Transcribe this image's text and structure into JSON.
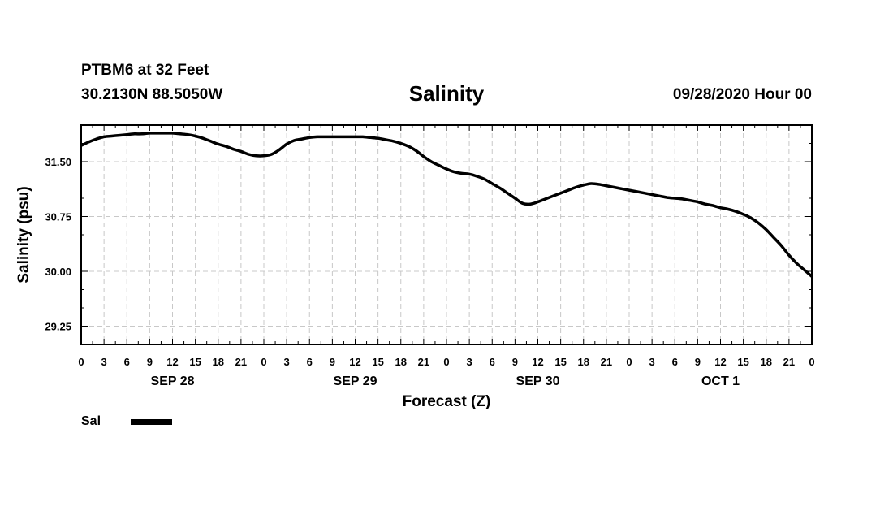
{
  "header": {
    "station": "PTBM6 at 32 Feet",
    "coords": "30.2130N 88.5050W",
    "title": "Salinity",
    "datetime": "09/28/2020 Hour 00"
  },
  "legend": {
    "label": "Sal",
    "color": "#000000"
  },
  "chart_data": {
    "type": "line",
    "title": "Salinity",
    "xlabel": "Forecast (Z)",
    "ylabel": "Salinity (psu)",
    "x_unit": "forecast hour from 09/28/2020 00Z",
    "xlim": [
      0,
      96
    ],
    "ylim": [
      29.0,
      32.0
    ],
    "yticks": [
      29.25,
      30.0,
      30.75,
      31.5
    ],
    "ytick_labels": [
      "29.25",
      "30.00",
      "30.75",
      "31.50"
    ],
    "xtick_labels": [
      "0",
      "3",
      "6",
      "9",
      "12",
      "15",
      "18",
      "21",
      "0",
      "3",
      "6",
      "9",
      "12",
      "15",
      "18",
      "21",
      "0",
      "3",
      "6",
      "9",
      "12",
      "15",
      "18",
      "21",
      "0",
      "3",
      "6",
      "9",
      "12",
      "15",
      "18",
      "21",
      "0"
    ],
    "day_labels": [
      {
        "label": "SEP 28",
        "hour": 12
      },
      {
        "label": "SEP 29",
        "hour": 36
      },
      {
        "label": "SEP 30",
        "hour": 60
      },
      {
        "label": "OCT 1",
        "hour": 84
      }
    ],
    "grid": true,
    "series": [
      {
        "name": "Sal",
        "color": "#000000",
        "x": [
          0,
          1,
          2,
          3,
          4,
          5,
          6,
          7,
          8,
          9,
          10,
          11,
          12,
          13,
          14,
          15,
          16,
          17,
          18,
          19,
          20,
          21,
          22,
          23,
          24,
          25,
          26,
          27,
          28,
          29,
          30,
          31,
          32,
          33,
          34,
          35,
          36,
          37,
          38,
          39,
          40,
          41,
          42,
          43,
          44,
          45,
          46,
          47,
          48,
          49,
          50,
          51,
          52,
          53,
          54,
          55,
          56,
          57,
          58,
          59,
          60,
          61,
          62,
          63,
          64,
          65,
          66,
          67,
          68,
          69,
          70,
          71,
          72,
          73,
          74,
          75,
          76,
          77,
          78,
          79,
          80,
          81,
          82,
          83,
          84,
          85,
          86,
          87,
          88,
          89,
          90,
          91,
          92,
          93,
          94,
          95,
          96
        ],
        "values": [
          31.72,
          31.77,
          31.81,
          31.84,
          31.85,
          31.86,
          31.87,
          31.88,
          31.88,
          31.89,
          31.89,
          31.89,
          31.89,
          31.88,
          31.87,
          31.85,
          31.82,
          31.78,
          31.74,
          31.71,
          31.67,
          31.64,
          31.6,
          31.58,
          31.58,
          31.6,
          31.66,
          31.74,
          31.79,
          31.81,
          31.83,
          31.84,
          31.84,
          31.84,
          31.84,
          31.84,
          31.84,
          31.84,
          31.83,
          31.82,
          31.8,
          31.78,
          31.75,
          31.71,
          31.65,
          31.57,
          31.5,
          31.45,
          31.4,
          31.36,
          31.34,
          31.33,
          31.3,
          31.26,
          31.2,
          31.14,
          31.07,
          31.0,
          30.93,
          30.92,
          30.95,
          30.99,
          31.03,
          31.07,
          31.11,
          31.15,
          31.18,
          31.2,
          31.19,
          31.17,
          31.15,
          31.13,
          31.11,
          31.09,
          31.07,
          31.05,
          31.03,
          31.01,
          31.0,
          30.99,
          30.97,
          30.95,
          30.92,
          30.9,
          30.87,
          30.85,
          30.82,
          30.78,
          30.73,
          30.66,
          30.57,
          30.46,
          30.35,
          30.22,
          30.11,
          30.02,
          29.93
        ]
      }
    ]
  }
}
